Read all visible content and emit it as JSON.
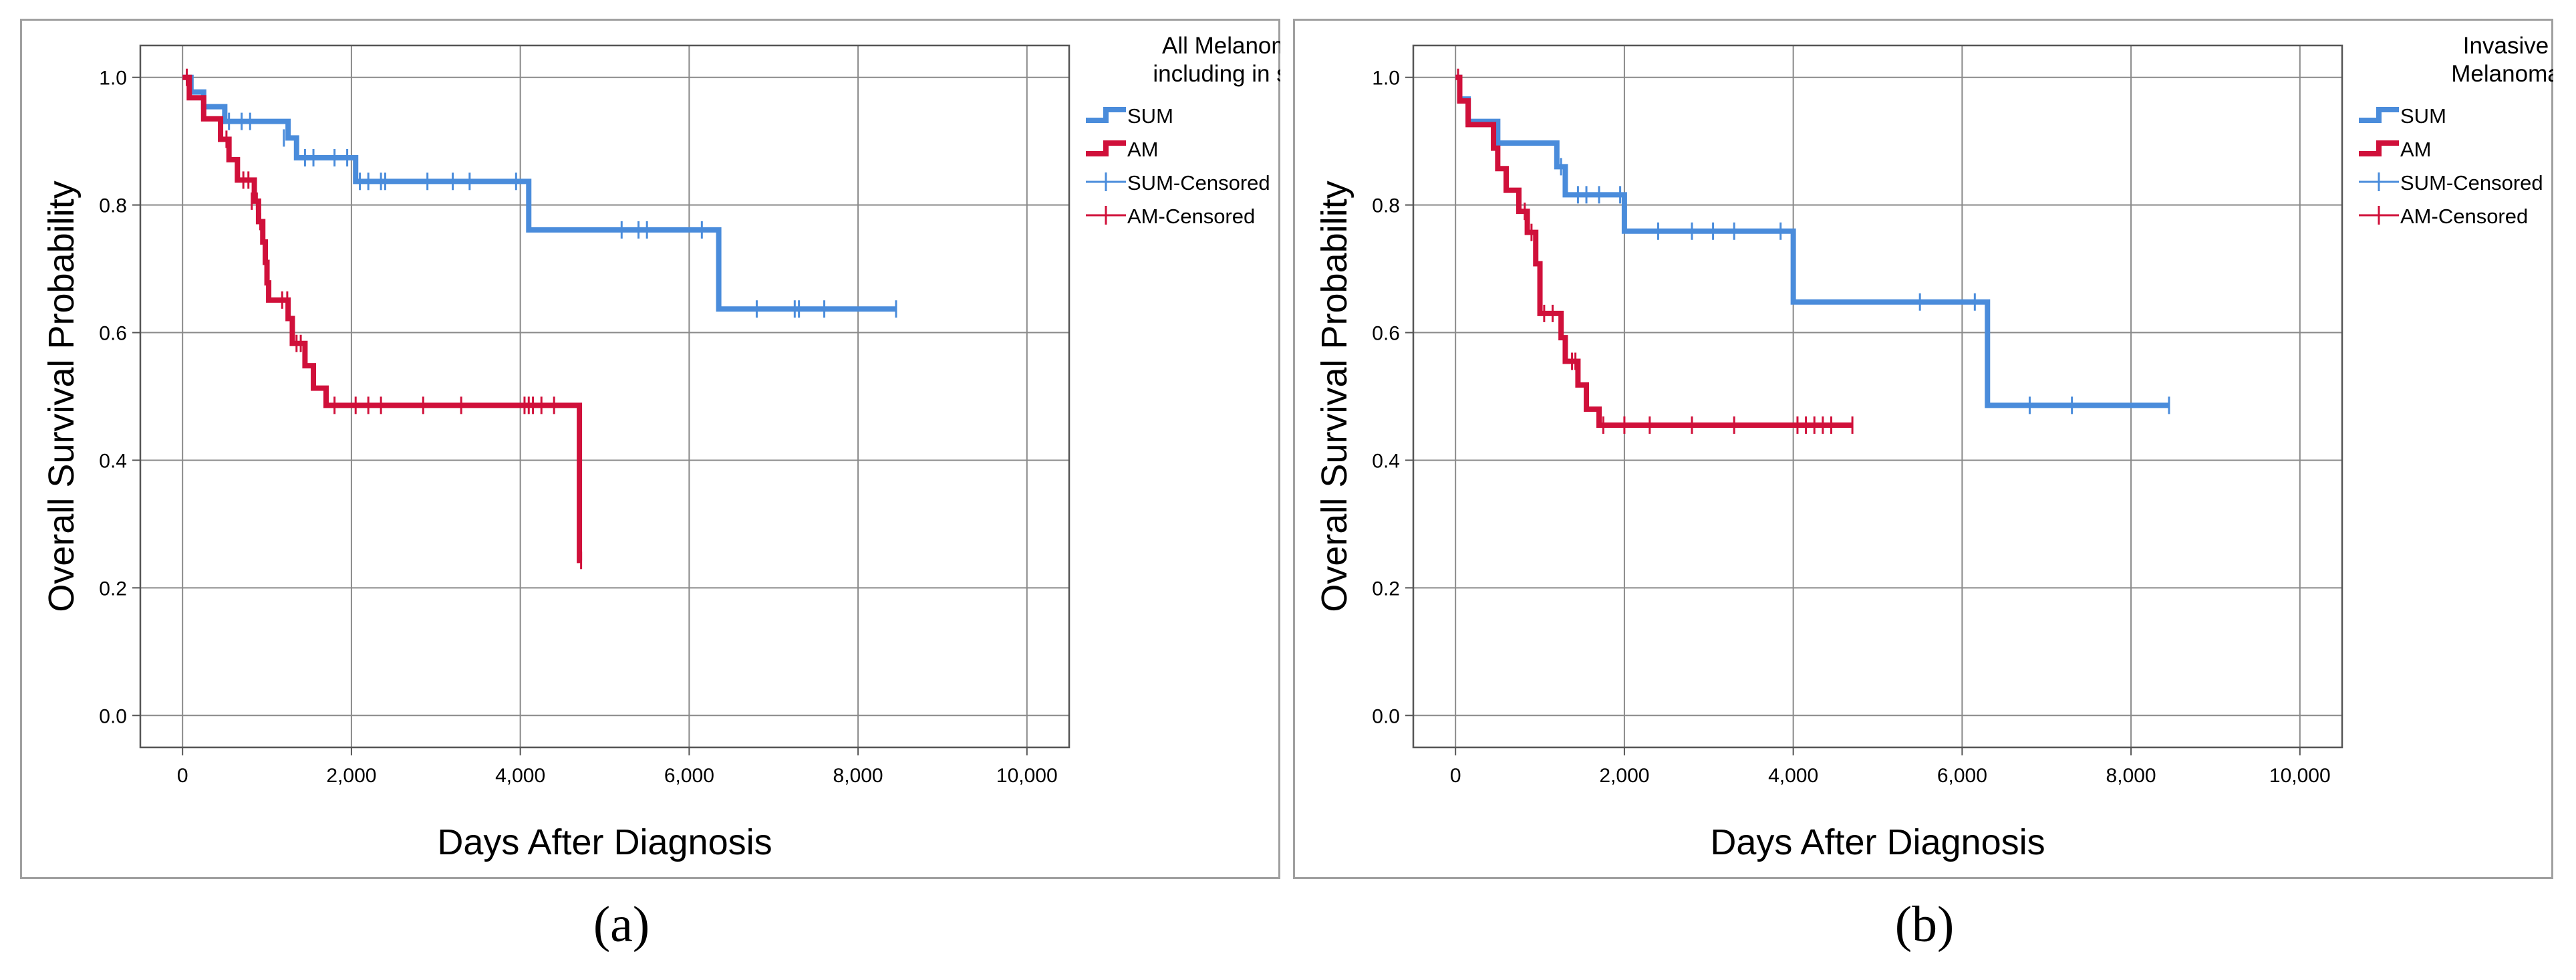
{
  "chart_data": [
    {
      "type": "line",
      "subtype": "kaplan-meier",
      "panel_label": "a",
      "legend_title": [
        "All Melanoma",
        "including in situ"
      ],
      "xlabel": "Days After Diagnosis",
      "ylabel": "Overall Survival Probability",
      "xlim": [
        -500,
        10500
      ],
      "ylim": [
        -0.05,
        1.05
      ],
      "xticks": [
        0,
        2000,
        4000,
        6000,
        8000,
        10000
      ],
      "xtick_labels": [
        "0",
        "2,000",
        "4,000",
        "6,000",
        "8,000",
        "10,000"
      ],
      "yticks": [
        0,
        0.2,
        0.4,
        0.6,
        0.8,
        1.0
      ],
      "ytick_labels": [
        "0.0",
        "0.2",
        "0.4",
        "0.6",
        "0.8",
        "1.0"
      ],
      "grid": true,
      "legend_position": "top-right",
      "legend": [
        "SUM",
        "AM",
        "SUM-Censored",
        "AM-Censored"
      ],
      "series": [
        {
          "name": "SUM",
          "color": "#4a8cdb",
          "steps": [
            [
              0,
              1.0
            ],
            [
              100,
              0.977
            ],
            [
              250,
              0.954
            ],
            [
              500,
              0.931
            ],
            [
              1250,
              0.905
            ],
            [
              1350,
              0.874
            ],
            [
              2050,
              0.837
            ],
            [
              4100,
              0.761
            ],
            [
              6350,
              0.637
            ],
            [
              8450,
              0.637
            ]
          ],
          "censored": [
            [
              550,
              0.931
            ],
            [
              700,
              0.931
            ],
            [
              800,
              0.931
            ],
            [
              1200,
              0.905
            ],
            [
              1450,
              0.874
            ],
            [
              1550,
              0.874
            ],
            [
              1800,
              0.874
            ],
            [
              1950,
              0.874
            ],
            [
              2100,
              0.837
            ],
            [
              2200,
              0.837
            ],
            [
              2350,
              0.837
            ],
            [
              2400,
              0.837
            ],
            [
              2900,
              0.837
            ],
            [
              3200,
              0.837
            ],
            [
              3400,
              0.837
            ],
            [
              3950,
              0.837
            ],
            [
              5200,
              0.761
            ],
            [
              5400,
              0.761
            ],
            [
              5500,
              0.761
            ],
            [
              6150,
              0.761
            ],
            [
              6800,
              0.637
            ],
            [
              7250,
              0.637
            ],
            [
              7300,
              0.637
            ],
            [
              7600,
              0.637
            ],
            [
              8450,
              0.637
            ]
          ]
        },
        {
          "name": "AM",
          "color": "#d0103a",
          "steps": [
            [
              0,
              1.0
            ],
            [
              80,
              0.968
            ],
            [
              250,
              0.935
            ],
            [
              450,
              0.903
            ],
            [
              550,
              0.871
            ],
            [
              650,
              0.839
            ],
            [
              850,
              0.806
            ],
            [
              900,
              0.774
            ],
            [
              950,
              0.742
            ],
            [
              980,
              0.71
            ],
            [
              1000,
              0.678
            ],
            [
              1020,
              0.651
            ],
            [
              1250,
              0.622
            ],
            [
              1300,
              0.583
            ],
            [
              1450,
              0.548
            ],
            [
              1550,
              0.513
            ],
            [
              1700,
              0.486
            ],
            [
              4700,
              0.243
            ],
            [
              4730,
              0.243
            ]
          ],
          "censored": [
            [
              50,
              1.0
            ],
            [
              520,
              0.903
            ],
            [
              720,
              0.839
            ],
            [
              780,
              0.839
            ],
            [
              820,
              0.806
            ],
            [
              880,
              0.806
            ],
            [
              920,
              0.774
            ],
            [
              1180,
              0.651
            ],
            [
              1240,
              0.651
            ],
            [
              1350,
              0.583
            ],
            [
              1400,
              0.583
            ],
            [
              1800,
              0.486
            ],
            [
              2050,
              0.486
            ],
            [
              2200,
              0.486
            ],
            [
              2350,
              0.486
            ],
            [
              2850,
              0.486
            ],
            [
              3300,
              0.486
            ],
            [
              4050,
              0.486
            ],
            [
              4100,
              0.486
            ],
            [
              4150,
              0.486
            ],
            [
              4250,
              0.486
            ],
            [
              4400,
              0.486
            ],
            [
              4720,
              0.243
            ]
          ]
        }
      ]
    },
    {
      "type": "line",
      "subtype": "kaplan-meier",
      "panel_label": "b",
      "legend_title": [
        "Invasive",
        "Melanoma"
      ],
      "xlabel": "Days After Diagnosis",
      "ylabel": "Overall Survival Probability",
      "xlim": [
        -500,
        10500
      ],
      "ylim": [
        -0.05,
        1.05
      ],
      "xticks": [
        0,
        2000,
        4000,
        6000,
        8000,
        10000
      ],
      "xtick_labels": [
        "0",
        "2,000",
        "4,000",
        "6,000",
        "8,000",
        "10,000"
      ],
      "yticks": [
        0,
        0.2,
        0.4,
        0.6,
        0.8,
        1.0
      ],
      "ytick_labels": [
        "0.0",
        "0.2",
        "0.4",
        "0.6",
        "0.8",
        "1.0"
      ],
      "grid": true,
      "legend_position": "top-right",
      "legend": [
        "SUM",
        "AM",
        "SUM-Censored",
        "AM-Censored"
      ],
      "series": [
        {
          "name": "SUM",
          "color": "#4a8cdb",
          "steps": [
            [
              0,
              1.0
            ],
            [
              50,
              0.966
            ],
            [
              150,
              0.931
            ],
            [
              500,
              0.897
            ],
            [
              1200,
              0.86
            ],
            [
              1300,
              0.816
            ],
            [
              2000,
              0.759
            ],
            [
              4000,
              0.648
            ],
            [
              6300,
              0.486
            ],
            [
              8450,
              0.486
            ]
          ],
          "censored": [
            [
              1250,
              0.86
            ],
            [
              1450,
              0.816
            ],
            [
              1550,
              0.816
            ],
            [
              1700,
              0.816
            ],
            [
              1950,
              0.816
            ],
            [
              2400,
              0.759
            ],
            [
              2800,
              0.759
            ],
            [
              3050,
              0.759
            ],
            [
              3300,
              0.759
            ],
            [
              3850,
              0.759
            ],
            [
              5500,
              0.648
            ],
            [
              6150,
              0.648
            ],
            [
              6800,
              0.486
            ],
            [
              7300,
              0.486
            ],
            [
              8450,
              0.486
            ]
          ]
        },
        {
          "name": "AM",
          "color": "#d0103a",
          "steps": [
            [
              0,
              1.0
            ],
            [
              50,
              0.963
            ],
            [
              150,
              0.926
            ],
            [
              450,
              0.889
            ],
            [
              500,
              0.857
            ],
            [
              600,
              0.823
            ],
            [
              750,
              0.79
            ],
            [
              850,
              0.757
            ],
            [
              950,
              0.708
            ],
            [
              1000,
              0.63
            ],
            [
              1250,
              0.592
            ],
            [
              1300,
              0.555
            ],
            [
              1450,
              0.518
            ],
            [
              1550,
              0.48
            ],
            [
              1700,
              0.455
            ],
            [
              4700,
              0.455
            ]
          ],
          "censored": [
            [
              30,
              1.0
            ],
            [
              820,
              0.79
            ],
            [
              900,
              0.757
            ],
            [
              1050,
              0.63
            ],
            [
              1150,
              0.63
            ],
            [
              1380,
              0.555
            ],
            [
              1420,
              0.555
            ],
            [
              1750,
              0.455
            ],
            [
              2000,
              0.455
            ],
            [
              2300,
              0.455
            ],
            [
              2800,
              0.455
            ],
            [
              3300,
              0.455
            ],
            [
              4050,
              0.455
            ],
            [
              4150,
              0.455
            ],
            [
              4250,
              0.455
            ],
            [
              4350,
              0.455
            ],
            [
              4450,
              0.455
            ],
            [
              4700,
              0.455
            ]
          ]
        }
      ]
    }
  ],
  "captions": {
    "a": "(a)",
    "b": "(b)"
  }
}
